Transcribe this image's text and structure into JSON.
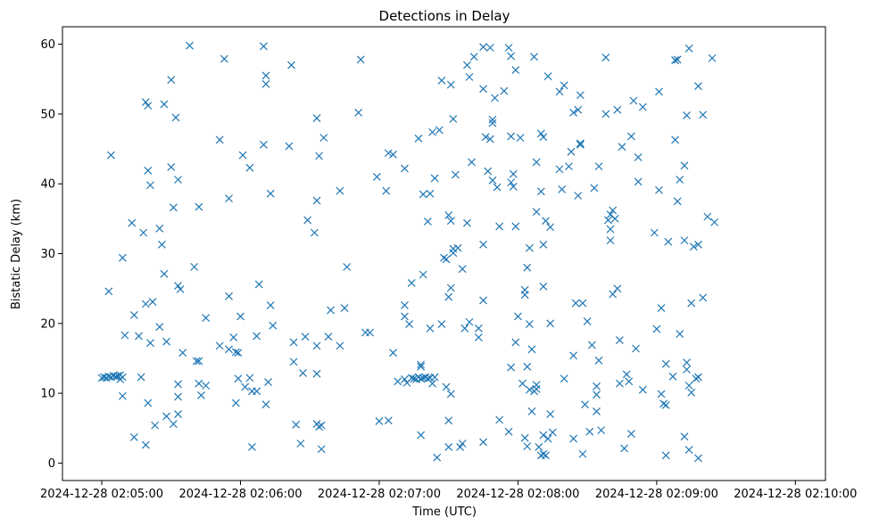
{
  "chart_data": {
    "type": "scatter",
    "title": "Detections in Delay",
    "xlabel": "Time (UTC)",
    "ylabel": "Bistatic Delay (km)",
    "x_unit": "seconds after 2024-12-28 02:05:00",
    "xlim": [
      -17,
      313
    ],
    "ylim": [
      -2.5,
      62.5
    ],
    "x_ticks": [
      {
        "value": 0,
        "label": "2024-12-28 02:05:00"
      },
      {
        "value": 60,
        "label": "2024-12-28 02:06:00"
      },
      {
        "value": 120,
        "label": "2024-12-28 02:07:00"
      },
      {
        "value": 180,
        "label": "2024-12-28 02:08:00"
      },
      {
        "value": 240,
        "label": "2024-12-28 02:09:00"
      },
      {
        "value": 300,
        "label": "2024-12-28 02:10:00"
      }
    ],
    "y_ticks": [
      {
        "value": 0,
        "label": "0"
      },
      {
        "value": 10,
        "label": "10"
      },
      {
        "value": 20,
        "label": "20"
      },
      {
        "value": 30,
        "label": "30"
      },
      {
        "value": 40,
        "label": "40"
      },
      {
        "value": 50,
        "label": "50"
      },
      {
        "value": 60,
        "label": "60"
      }
    ],
    "grid": false,
    "marker": "x",
    "marker_color": "#1f77b4",
    "points": [
      [
        0,
        12.2
      ],
      [
        1,
        12.3
      ],
      [
        2,
        12.2
      ],
      [
        3,
        12.4
      ],
      [
        4,
        12.3
      ],
      [
        5,
        12.5
      ],
      [
        6,
        12.4
      ],
      [
        7,
        12.5
      ],
      [
        8,
        12.6
      ],
      [
        9,
        12.3
      ],
      [
        8,
        12.0
      ],
      [
        3,
        24.6
      ],
      [
        4,
        44.1
      ],
      [
        9,
        29.4
      ],
      [
        9,
        9.6
      ],
      [
        10,
        18.3
      ],
      [
        13,
        34.4
      ],
      [
        14,
        21.2
      ],
      [
        14,
        3.7
      ],
      [
        16,
        18.2
      ],
      [
        17,
        12.3
      ],
      [
        19,
        2.6
      ],
      [
        18,
        33.0
      ],
      [
        19,
        51.7
      ],
      [
        19,
        22.8
      ],
      [
        20,
        51.2
      ],
      [
        20,
        41.9
      ],
      [
        20,
        8.6
      ],
      [
        21,
        39.8
      ],
      [
        21,
        17.2
      ],
      [
        22,
        23.1
      ],
      [
        23,
        5.4
      ],
      [
        25,
        33.6
      ],
      [
        25,
        19.5
      ],
      [
        26,
        31.3
      ],
      [
        27,
        51.4
      ],
      [
        27,
        27.1
      ],
      [
        28,
        6.7
      ],
      [
        28,
        17.4
      ],
      [
        30,
        54.9
      ],
      [
        30,
        42.4
      ],
      [
        31,
        36.6
      ],
      [
        31,
        5.6
      ],
      [
        32,
        49.5
      ],
      [
        33,
        40.6
      ],
      [
        33,
        11.3
      ],
      [
        33,
        9.5
      ],
      [
        33,
        7.0
      ],
      [
        33,
        25.4
      ],
      [
        34,
        24.9
      ],
      [
        35,
        15.8
      ],
      [
        38,
        59.8
      ],
      [
        40,
        28.1
      ],
      [
        41,
        14.6
      ],
      [
        42,
        14.6
      ],
      [
        42,
        36.7
      ],
      [
        42,
        11.4
      ],
      [
        43,
        9.7
      ],
      [
        45,
        20.8
      ],
      [
        45,
        11.1
      ],
      [
        51,
        46.3
      ],
      [
        51,
        16.8
      ],
      [
        53,
        57.9
      ],
      [
        55,
        37.9
      ],
      [
        55,
        23.9
      ],
      [
        55,
        16.3
      ],
      [
        57,
        18.0
      ],
      [
        58,
        15.9
      ],
      [
        58,
        8.6
      ],
      [
        59,
        15.8
      ],
      [
        59,
        12.1
      ],
      [
        60,
        21.0
      ],
      [
        61,
        44.1
      ],
      [
        62,
        10.9
      ],
      [
        64,
        42.3
      ],
      [
        64,
        12.2
      ],
      [
        65,
        10.3
      ],
      [
        65,
        2.3
      ],
      [
        67,
        10.3
      ],
      [
        67,
        18.2
      ],
      [
        68,
        25.6
      ],
      [
        70,
        59.7
      ],
      [
        70,
        45.6
      ],
      [
        71,
        55.5
      ],
      [
        71,
        54.3
      ],
      [
        71,
        8.4
      ],
      [
        72,
        11.6
      ],
      [
        73,
        38.6
      ],
      [
        73,
        22.6
      ],
      [
        74,
        19.7
      ],
      [
        81,
        45.4
      ],
      [
        82,
        57.0
      ],
      [
        83,
        17.3
      ],
      [
        83,
        14.5
      ],
      [
        84,
        5.5
      ],
      [
        86,
        2.8
      ],
      [
        87,
        12.9
      ],
      [
        88,
        18.1
      ],
      [
        89,
        34.8
      ],
      [
        92,
        33.0
      ],
      [
        93,
        49.4
      ],
      [
        93,
        37.6
      ],
      [
        93,
        16.8
      ],
      [
        93,
        12.8
      ],
      [
        93,
        5.6
      ],
      [
        94,
        44.0
      ],
      [
        94,
        5.2
      ],
      [
        95,
        5.4
      ],
      [
        95,
        2.0
      ],
      [
        96,
        46.6
      ],
      [
        98,
        18.1
      ],
      [
        99,
        21.9
      ],
      [
        103,
        39.0
      ],
      [
        103,
        16.8
      ],
      [
        105,
        22.2
      ],
      [
        106,
        28.1
      ],
      [
        111,
        50.2
      ],
      [
        112,
        57.8
      ],
      [
        114,
        18.7
      ],
      [
        116,
        18.7
      ],
      [
        119,
        41.0
      ],
      [
        120,
        6.0
      ],
      [
        123,
        39.0
      ],
      [
        124,
        44.4
      ],
      [
        124,
        6.1
      ],
      [
        126,
        15.8
      ],
      [
        126,
        44.2
      ],
      [
        128,
        11.7
      ],
      [
        131,
        42.2
      ],
      [
        131,
        22.6
      ],
      [
        131,
        21.0
      ],
      [
        131,
        12.0
      ],
      [
        132,
        11.5
      ],
      [
        133,
        19.9
      ],
      [
        134,
        12.2
      ],
      [
        135,
        12.1
      ],
      [
        136,
        12.0
      ],
      [
        137,
        12.3
      ],
      [
        138,
        12.1
      ],
      [
        139,
        12.2
      ],
      [
        140,
        12.3
      ],
      [
        141,
        12.1
      ],
      [
        142,
        12.2
      ],
      [
        143,
        11.4
      ],
      [
        144,
        12.3
      ],
      [
        138,
        14.1
      ],
      [
        138,
        13.8
      ],
      [
        134,
        25.8
      ],
      [
        137,
        46.5
      ],
      [
        138,
        4.0
      ],
      [
        139,
        27.0
      ],
      [
        139,
        38.5
      ],
      [
        141,
        34.6
      ],
      [
        142,
        38.6
      ],
      [
        143,
        47.4
      ],
      [
        142,
        19.3
      ],
      [
        144,
        40.8
      ],
      [
        145,
        0.8
      ],
      [
        146,
        47.7
      ],
      [
        147,
        54.8
      ],
      [
        147,
        19.9
      ],
      [
        148,
        29.4
      ],
      [
        149,
        10.9
      ],
      [
        149,
        29.2
      ],
      [
        150,
        35.5
      ],
      [
        150,
        23.8
      ],
      [
        151,
        54.2
      ],
      [
        151,
        25.1
      ],
      [
        151,
        9.9
      ],
      [
        152,
        49.3
      ],
      [
        151,
        34.7
      ],
      [
        150,
        6.1
      ],
      [
        150,
        2.3
      ],
      [
        152,
        30.1
      ],
      [
        152,
        30.7
      ],
      [
        153,
        41.3
      ],
      [
        154,
        30.8
      ],
      [
        155,
        2.3
      ],
      [
        156,
        27.8
      ],
      [
        156,
        2.8
      ],
      [
        157,
        19.3
      ],
      [
        158,
        34.4
      ],
      [
        158,
        57.0
      ],
      [
        159,
        55.3
      ],
      [
        159,
        20.2
      ],
      [
        160,
        43.1
      ],
      [
        161,
        58.2
      ],
      [
        163,
        19.3
      ],
      [
        163,
        18.0
      ],
      [
        165,
        59.6
      ],
      [
        165,
        53.6
      ],
      [
        165,
        31.3
      ],
      [
        165,
        23.3
      ],
      [
        165,
        3.0
      ],
      [
        166,
        46.7
      ],
      [
        167,
        41.8
      ],
      [
        168,
        59.5
      ],
      [
        168,
        46.4
      ],
      [
        169,
        40.5
      ],
      [
        169,
        48.7
      ],
      [
        169,
        49.2
      ],
      [
        170,
        52.3
      ],
      [
        171,
        39.5
      ],
      [
        172,
        6.2
      ],
      [
        172,
        33.9
      ],
      [
        174,
        53.3
      ],
      [
        176,
        59.5
      ],
      [
        176,
        4.5
      ],
      [
        177,
        46.8
      ],
      [
        177,
        40.2
      ],
      [
        177,
        58.3
      ],
      [
        177,
        13.7
      ],
      [
        178,
        39.6
      ],
      [
        178,
        41.4
      ],
      [
        179,
        56.3
      ],
      [
        179,
        17.3
      ],
      [
        179,
        33.9
      ],
      [
        180,
        21.0
      ],
      [
        181,
        46.6
      ],
      [
        182,
        11.4
      ],
      [
        183,
        3.6
      ],
      [
        183,
        24.1
      ],
      [
        183,
        24.8
      ],
      [
        184,
        28.0
      ],
      [
        184,
        2.4
      ],
      [
        184,
        13.8
      ],
      [
        185,
        30.8
      ],
      [
        185,
        10.5
      ],
      [
        185,
        19.9
      ],
      [
        186,
        16.3
      ],
      [
        186,
        7.4
      ],
      [
        187,
        58.2
      ],
      [
        187,
        10.3
      ],
      [
        188,
        36.0
      ],
      [
        188,
        43.1
      ],
      [
        188,
        11.2
      ],
      [
        188,
        10.6
      ],
      [
        189,
        2.3
      ],
      [
        190,
        47.2
      ],
      [
        190,
        38.9
      ],
      [
        190,
        1.1
      ],
      [
        191,
        46.7
      ],
      [
        191,
        31.3
      ],
      [
        191,
        25.3
      ],
      [
        191,
        4.0
      ],
      [
        191,
        1.3
      ],
      [
        192,
        34.7
      ],
      [
        192,
        1.1
      ],
      [
        193,
        55.4
      ],
      [
        193,
        3.5
      ],
      [
        194,
        33.8
      ],
      [
        194,
        20.0
      ],
      [
        194,
        7.0
      ],
      [
        195,
        4.4
      ],
      [
        198,
        42.1
      ],
      [
        198,
        53.2
      ],
      [
        199,
        39.2
      ],
      [
        200,
        54.1
      ],
      [
        200,
        12.1
      ],
      [
        202,
        42.5
      ],
      [
        203,
        44.6
      ],
      [
        204,
        50.2
      ],
      [
        204,
        15.4
      ],
      [
        204,
        3.5
      ],
      [
        205,
        22.9
      ],
      [
        206,
        50.6
      ],
      [
        206,
        38.3
      ],
      [
        207,
        52.7
      ],
      [
        207,
        45.8
      ],
      [
        207,
        45.6
      ],
      [
        208,
        22.9
      ],
      [
        208,
        1.3
      ],
      [
        209,
        8.4
      ],
      [
        210,
        20.3
      ],
      [
        211,
        4.5
      ],
      [
        212,
        16.9
      ],
      [
        213,
        39.4
      ],
      [
        214,
        11.0
      ],
      [
        214,
        9.8
      ],
      [
        214,
        7.4
      ],
      [
        215,
        42.5
      ],
      [
        215,
        14.7
      ],
      [
        216,
        4.7
      ],
      [
        218,
        58.1
      ],
      [
        218,
        50.0
      ],
      [
        219,
        34.8
      ],
      [
        220,
        35.6
      ],
      [
        220,
        33.5
      ],
      [
        220,
        31.9
      ],
      [
        221,
        36.2
      ],
      [
        221,
        24.2
      ],
      [
        222,
        35.0
      ],
      [
        223,
        50.6
      ],
      [
        223,
        25.0
      ],
      [
        224,
        17.6
      ],
      [
        224,
        11.4
      ],
      [
        225,
        45.3
      ],
      [
        226,
        2.1
      ],
      [
        227,
        12.7
      ],
      [
        228,
        11.7
      ],
      [
        229,
        46.8
      ],
      [
        229,
        4.2
      ],
      [
        230,
        51.9
      ],
      [
        231,
        16.4
      ],
      [
        232,
        40.3
      ],
      [
        232,
        43.8
      ],
      [
        234,
        51.0
      ],
      [
        234,
        10.5
      ],
      [
        239,
        33.0
      ],
      [
        240,
        19.2
      ],
      [
        241,
        53.2
      ],
      [
        241,
        39.1
      ],
      [
        242,
        22.2
      ],
      [
        242,
        9.9
      ],
      [
        243,
        8.5
      ],
      [
        244,
        8.3
      ],
      [
        244,
        14.2
      ],
      [
        244,
        1.1
      ],
      [
        245,
        31.7
      ],
      [
        247,
        12.4
      ],
      [
        248,
        57.7
      ],
      [
        248,
        57.7
      ],
      [
        248,
        46.3
      ],
      [
        249,
        57.8
      ],
      [
        249,
        37.5
      ],
      [
        250,
        40.6
      ],
      [
        250,
        18.5
      ],
      [
        252,
        42.6
      ],
      [
        252,
        31.9
      ],
      [
        252,
        3.8
      ],
      [
        253,
        49.8
      ],
      [
        253,
        14.4
      ],
      [
        253,
        13.4
      ],
      [
        254,
        59.4
      ],
      [
        254,
        11.1
      ],
      [
        254,
        1.9
      ],
      [
        255,
        22.9
      ],
      [
        255,
        10.1
      ],
      [
        256,
        31.0
      ],
      [
        257,
        12.1
      ],
      [
        258,
        54.0
      ],
      [
        258,
        31.3
      ],
      [
        258,
        0.7
      ],
      [
        258,
        12.3
      ],
      [
        260,
        49.9
      ],
      [
        260,
        23.7
      ],
      [
        262,
        35.3
      ],
      [
        264,
        58.0
      ],
      [
        265,
        34.5
      ]
    ]
  }
}
